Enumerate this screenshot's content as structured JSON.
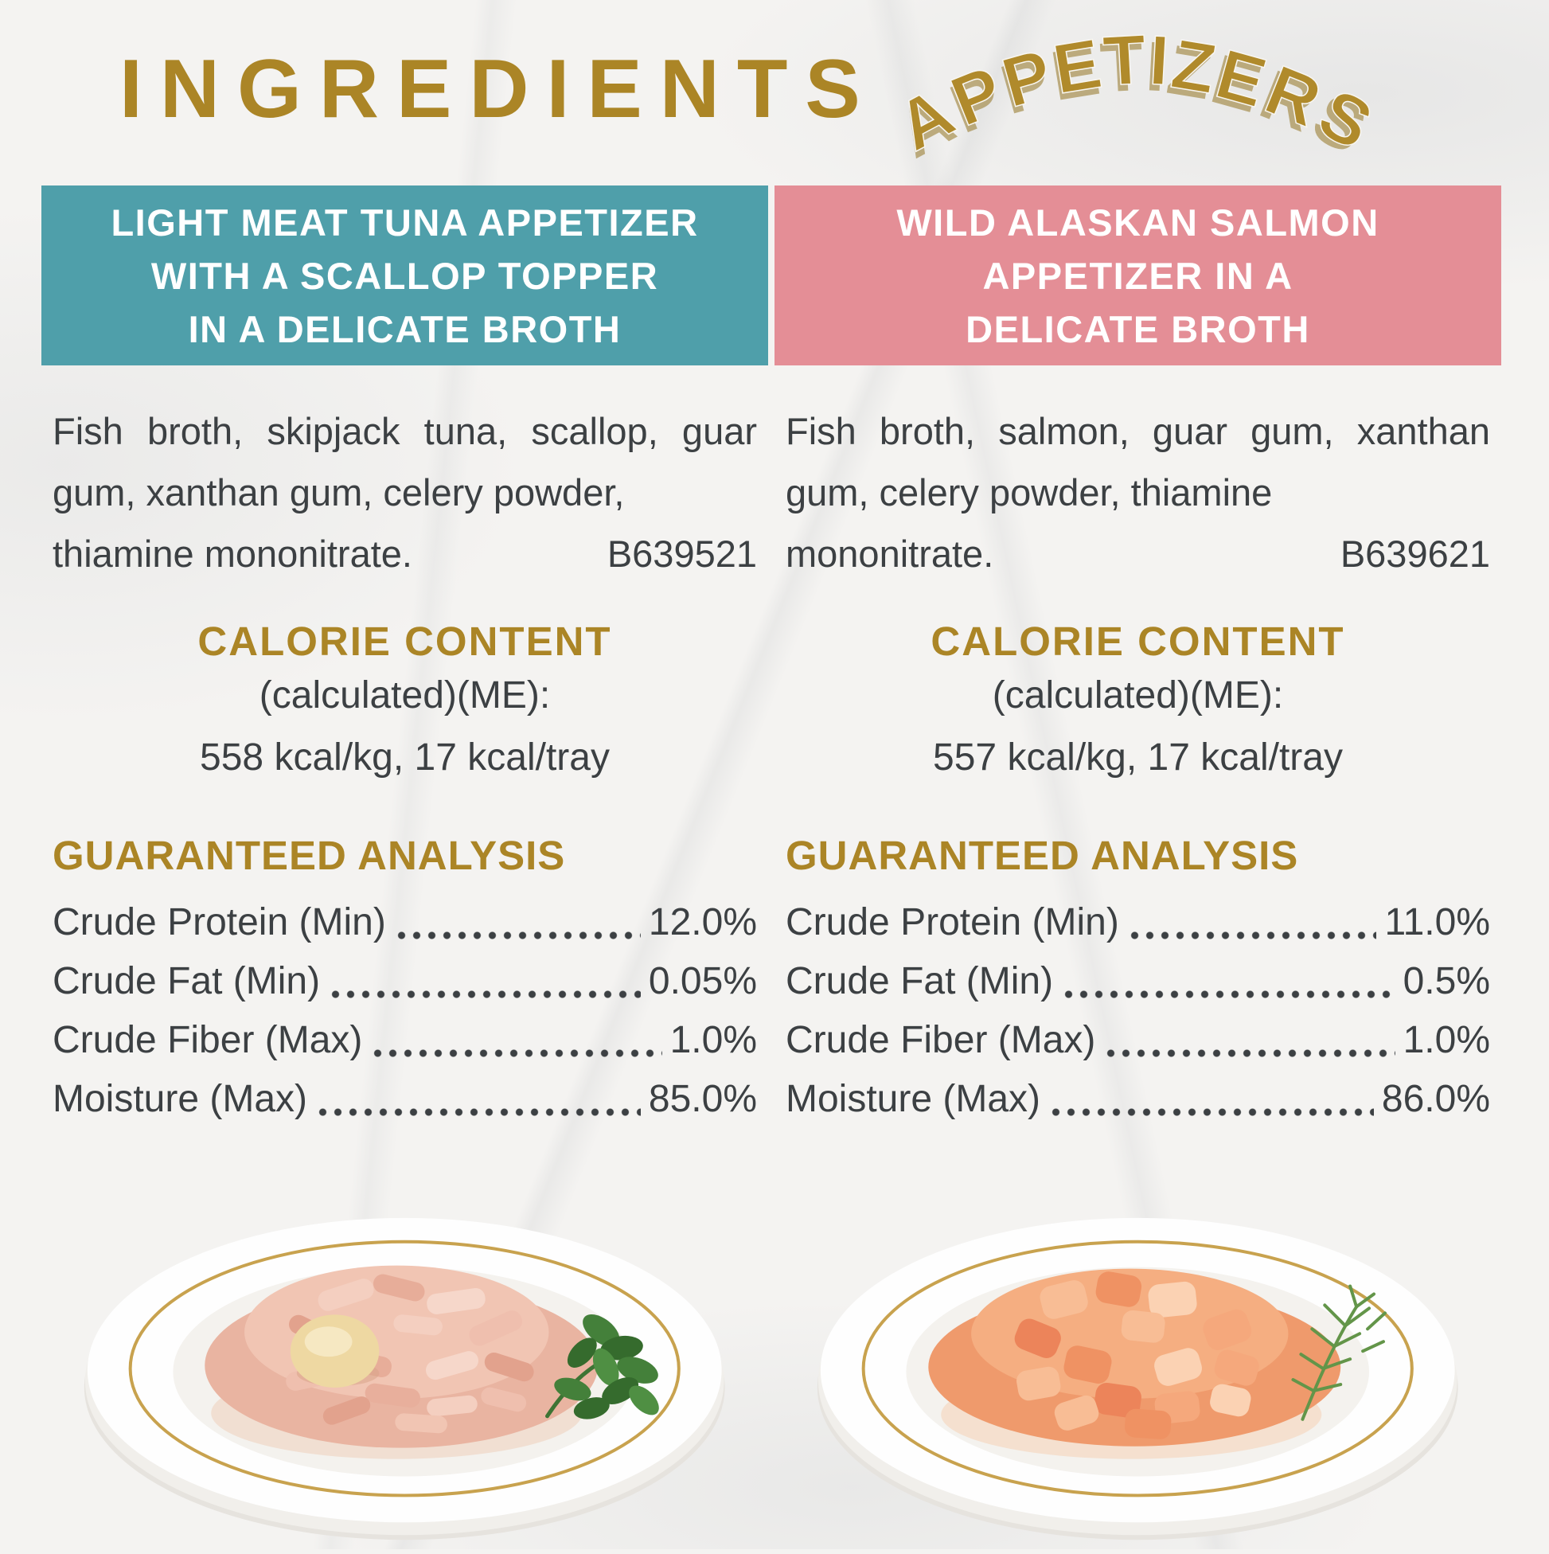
{
  "colors": {
    "gold": "#ab8526",
    "teal": "#4f9faa",
    "pink": "#e48e96",
    "text": "#3c4043",
    "plate_rim_gold": "#c8a24e"
  },
  "header": {
    "title": "INGREDIENTS",
    "subtitle": "APPETIZERS"
  },
  "products": [
    {
      "name": "light-meat-tuna-appetizer",
      "banner": {
        "color": "#4f9faa",
        "lines": [
          "LIGHT MEAT TUNA APPETIZER",
          "WITH A SCALLOP TOPPER",
          "IN A DELICATE BROTH"
        ]
      },
      "ingredients": {
        "text": "Fish broth, skipjack tuna, scallop, guar gum, xanthan gum, celery powder,",
        "tail": "thiamine mononitrate.",
        "batch_code": "B639521"
      },
      "calorie_content": {
        "heading": "CALORIE CONTENT",
        "method": "(calculated)(ME):",
        "values": "558 kcal/kg, 17 kcal/tray"
      },
      "guaranteed_analysis": {
        "heading": "GUARANTEED ANALYSIS",
        "rows": [
          {
            "label": "Crude Protein (Min)",
            "value": "12.0%"
          },
          {
            "label": "Crude Fat (Min)",
            "value": "0.05%"
          },
          {
            "label": "Crude Fiber (Max)",
            "value": "1.0%"
          },
          {
            "label": "Moisture (Max)",
            "value": "85.0%"
          }
        ]
      },
      "photo": {
        "name": "tuna-plate-image",
        "alt": "Shredded light meat tuna with a scallop topper and parsley garnish on a gold-rimmed white plate"
      }
    },
    {
      "name": "wild-alaskan-salmon-appetizer",
      "banner": {
        "color": "#e48e96",
        "lines": [
          "WILD ALASKAN SALMON",
          "APPETIZER IN A",
          "DELICATE BROTH"
        ]
      },
      "ingredients": {
        "text": "Fish broth, salmon, guar gum, xanthan gum, celery powder, thiamine",
        "tail": "mononitrate.",
        "batch_code": "B639621"
      },
      "calorie_content": {
        "heading": "CALORIE CONTENT",
        "method": "(calculated)(ME):",
        "values": "557 kcal/kg, 17 kcal/tray"
      },
      "guaranteed_analysis": {
        "heading": "GUARANTEED ANALYSIS",
        "rows": [
          {
            "label": "Crude Protein (Min)",
            "value": "11.0%"
          },
          {
            "label": "Crude Fat (Min)",
            "value": "0.5%"
          },
          {
            "label": "Crude Fiber (Max)",
            "value": "1.0%"
          },
          {
            "label": "Moisture (Max)",
            "value": "86.0%"
          }
        ]
      },
      "photo": {
        "name": "salmon-plate-image",
        "alt": "Wild Alaskan salmon pieces with a dill sprig on a gold-rimmed white plate"
      }
    }
  ]
}
